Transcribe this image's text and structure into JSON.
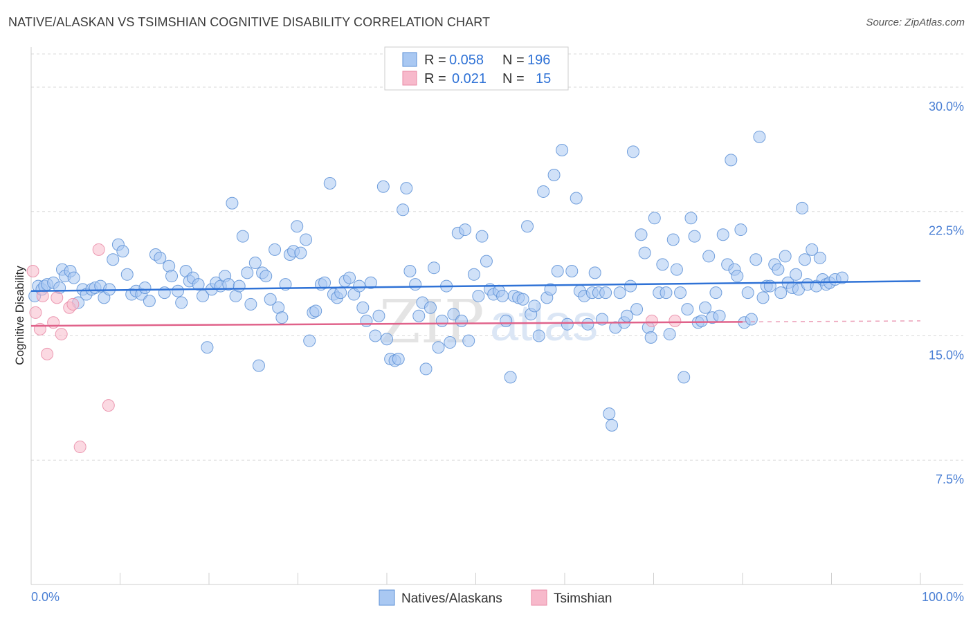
{
  "title": "NATIVE/ALASKAN VS TSIMSHIAN COGNITIVE DISABILITY CORRELATION CHART",
  "source": "Source: ZipAtlas.com",
  "watermark": {
    "zip": "ZIP",
    "atlas": "atlas"
  },
  "legend": {
    "rows": [
      {
        "r_label": "R =",
        "r_value": "0.058",
        "n_label": "N =",
        "n_value": "196",
        "color": "#a9c8f2"
      },
      {
        "r_label": "R =",
        "r_value": "0.021",
        "n_label": "N =",
        "n_value": "15",
        "color": "#f7b9cb"
      }
    ]
  },
  "bottom_legend": {
    "natives": "Natives/Alaskans",
    "tsimshian": "Tsimshian"
  },
  "colors": {
    "blue_fill": "#a9c8f2",
    "blue_stroke": "#5b8fd6",
    "blue_line": "#2f72d6",
    "pink_fill": "#f7b9cb",
    "pink_stroke": "#e98aa6",
    "pink_line": "#e0628a",
    "tick_text": "#4a7fd4",
    "grid": "#d8d8d8"
  },
  "chart_data": {
    "type": "scatter",
    "title": "NATIVE/ALASKAN VS TSIMSHIAN COGNITIVE DISABILITY CORRELATION CHART",
    "xlabel": "",
    "ylabel": "Cognitive Disability",
    "xlim": [
      0,
      100
    ],
    "ylim": [
      0,
      32
    ],
    "x_tick_labels": [
      "0.0%",
      "100.0%"
    ],
    "y_ticks": [
      7.5,
      15.0,
      22.5,
      30.0
    ],
    "y_tick_labels": [
      "7.5%",
      "15.0%",
      "22.5%",
      "30.0%"
    ],
    "grid": "horizontal dashed",
    "legend_position": "top-center",
    "series": [
      {
        "name": "Natives/Alaskans",
        "r": 0.058,
        "n": 196,
        "trend": {
          "x": [
            0,
            100
          ],
          "y": [
            17.7,
            18.3
          ]
        },
        "points": [
          [
            0.4,
            17.4
          ],
          [
            0.8,
            18.0
          ],
          [
            1.2,
            17.8
          ],
          [
            1.5,
            18.0
          ],
          [
            1.8,
            18.1
          ],
          [
            2.5,
            18.2
          ],
          [
            3.2,
            17.9
          ],
          [
            3.5,
            19.0
          ],
          [
            3.8,
            18.6
          ],
          [
            4.4,
            18.9
          ],
          [
            4.8,
            18.5
          ],
          [
            5.3,
            17.0
          ],
          [
            5.8,
            17.8
          ],
          [
            6.2,
            17.5
          ],
          [
            6.8,
            17.8
          ],
          [
            7.2,
            17.9
          ],
          [
            7.8,
            18.0
          ],
          [
            8.2,
            17.3
          ],
          [
            8.8,
            17.8
          ],
          [
            9.2,
            19.6
          ],
          [
            9.8,
            20.5
          ],
          [
            10.3,
            20.1
          ],
          [
            10.8,
            18.7
          ],
          [
            11.3,
            17.5
          ],
          [
            11.8,
            17.7
          ],
          [
            12.4,
            17.5
          ],
          [
            12.8,
            17.9
          ],
          [
            13.3,
            17.1
          ],
          [
            14.0,
            19.9
          ],
          [
            14.5,
            19.7
          ],
          [
            15.0,
            17.6
          ],
          [
            15.5,
            19.2
          ],
          [
            15.8,
            18.6
          ],
          [
            16.5,
            17.7
          ],
          [
            16.9,
            17.0
          ],
          [
            17.4,
            18.9
          ],
          [
            17.8,
            18.3
          ],
          [
            18.2,
            18.5
          ],
          [
            18.8,
            18.1
          ],
          [
            19.3,
            17.4
          ],
          [
            19.8,
            14.3
          ],
          [
            20.3,
            17.8
          ],
          [
            20.8,
            18.2
          ],
          [
            21.3,
            18.0
          ],
          [
            21.8,
            18.6
          ],
          [
            22.2,
            18.1
          ],
          [
            22.6,
            23.0
          ],
          [
            23.0,
            17.4
          ],
          [
            23.4,
            18.0
          ],
          [
            23.8,
            21.0
          ],
          [
            24.3,
            18.8
          ],
          [
            24.7,
            16.9
          ],
          [
            25.2,
            19.4
          ],
          [
            25.6,
            13.2
          ],
          [
            26.0,
            18.8
          ],
          [
            26.4,
            18.6
          ],
          [
            26.9,
            17.2
          ],
          [
            27.4,
            20.2
          ],
          [
            27.8,
            16.7
          ],
          [
            28.2,
            16.1
          ],
          [
            28.6,
            18.1
          ],
          [
            29.1,
            19.9
          ],
          [
            29.5,
            20.1
          ],
          [
            29.9,
            21.6
          ],
          [
            30.3,
            20.0
          ],
          [
            30.9,
            20.8
          ],
          [
            31.3,
            14.7
          ],
          [
            31.7,
            16.4
          ],
          [
            32.0,
            16.5
          ],
          [
            32.6,
            18.1
          ],
          [
            33.0,
            18.2
          ],
          [
            33.6,
            24.2
          ],
          [
            34.0,
            17.5
          ],
          [
            34.4,
            17.3
          ],
          [
            34.8,
            17.6
          ],
          [
            35.3,
            18.3
          ],
          [
            35.8,
            18.5
          ],
          [
            36.3,
            17.5
          ],
          [
            36.9,
            18.0
          ],
          [
            37.3,
            16.7
          ],
          [
            37.7,
            15.9
          ],
          [
            38.2,
            18.2
          ],
          [
            38.7,
            15.0
          ],
          [
            39.1,
            16.2
          ],
          [
            39.6,
            24.0
          ],
          [
            40.0,
            14.8
          ],
          [
            40.4,
            13.6
          ],
          [
            40.9,
            13.5
          ],
          [
            41.3,
            13.6
          ],
          [
            41.8,
            22.6
          ],
          [
            42.2,
            23.9
          ],
          [
            42.6,
            18.9
          ],
          [
            43.2,
            18.1
          ],
          [
            43.6,
            16.2
          ],
          [
            44.0,
            17.0
          ],
          [
            44.4,
            13.0
          ],
          [
            44.9,
            16.7
          ],
          [
            45.3,
            19.1
          ],
          [
            45.8,
            14.3
          ],
          [
            46.2,
            15.9
          ],
          [
            46.7,
            18.0
          ],
          [
            47.1,
            14.6
          ],
          [
            47.5,
            16.3
          ],
          [
            48.0,
            21.2
          ],
          [
            48.4,
            15.9
          ],
          [
            48.8,
            21.4
          ],
          [
            49.2,
            14.7
          ],
          [
            49.8,
            18.7
          ],
          [
            50.3,
            17.4
          ],
          [
            50.7,
            21.0
          ],
          [
            51.2,
            19.5
          ],
          [
            51.6,
            17.8
          ],
          [
            52.0,
            17.5
          ],
          [
            52.6,
            17.7
          ],
          [
            53.0,
            17.4
          ],
          [
            53.4,
            15.9
          ],
          [
            53.9,
            12.5
          ],
          [
            54.3,
            17.4
          ],
          [
            54.8,
            17.3
          ],
          [
            55.3,
            17.2
          ],
          [
            55.8,
            21.6
          ],
          [
            56.2,
            16.3
          ],
          [
            56.6,
            16.8
          ],
          [
            57.1,
            15.0
          ],
          [
            57.6,
            23.7
          ],
          [
            58.0,
            17.3
          ],
          [
            58.4,
            17.8
          ],
          [
            58.8,
            24.7
          ],
          [
            59.2,
            18.9
          ],
          [
            59.7,
            26.2
          ],
          [
            60.3,
            15.7
          ],
          [
            60.8,
            18.9
          ],
          [
            61.3,
            23.3
          ],
          [
            61.7,
            17.7
          ],
          [
            62.2,
            17.4
          ],
          [
            62.6,
            15.7
          ],
          [
            63.1,
            17.6
          ],
          [
            63.4,
            18.8
          ],
          [
            63.8,
            17.6
          ],
          [
            64.2,
            16.0
          ],
          [
            64.6,
            17.6
          ],
          [
            65.0,
            10.3
          ],
          [
            65.3,
            9.6
          ],
          [
            65.7,
            15.5
          ],
          [
            66.2,
            17.6
          ],
          [
            66.7,
            15.8
          ],
          [
            67.0,
            16.2
          ],
          [
            67.4,
            18.0
          ],
          [
            67.7,
            26.1
          ],
          [
            68.1,
            16.6
          ],
          [
            68.6,
            21.1
          ],
          [
            69.0,
            20.0
          ],
          [
            69.4,
            15.5
          ],
          [
            69.7,
            14.9
          ],
          [
            70.1,
            22.1
          ],
          [
            70.6,
            17.6
          ],
          [
            71.0,
            19.3
          ],
          [
            71.4,
            17.6
          ],
          [
            71.8,
            15.1
          ],
          [
            72.2,
            20.8
          ],
          [
            72.6,
            19.0
          ],
          [
            73.0,
            17.6
          ],
          [
            73.4,
            12.5
          ],
          [
            73.8,
            16.6
          ],
          [
            74.2,
            22.1
          ],
          [
            74.6,
            21.0
          ],
          [
            75.0,
            15.8
          ],
          [
            75.4,
            15.9
          ],
          [
            75.8,
            16.7
          ],
          [
            76.2,
            19.8
          ],
          [
            76.6,
            16.1
          ],
          [
            77.0,
            17.6
          ],
          [
            77.4,
            16.2
          ],
          [
            77.8,
            21.1
          ],
          [
            78.3,
            19.3
          ],
          [
            78.7,
            25.6
          ],
          [
            79.1,
            19.0
          ],
          [
            79.4,
            18.6
          ],
          [
            79.8,
            21.4
          ],
          [
            80.2,
            15.8
          ],
          [
            80.6,
            17.6
          ],
          [
            81.0,
            16.0
          ],
          [
            81.5,
            19.6
          ],
          [
            81.9,
            27.0
          ],
          [
            82.3,
            17.3
          ],
          [
            82.7,
            18.0
          ],
          [
            83.1,
            18.0
          ],
          [
            83.6,
            19.3
          ],
          [
            84.0,
            19.0
          ],
          [
            84.3,
            17.6
          ],
          [
            84.8,
            19.8
          ],
          [
            85.1,
            18.2
          ],
          [
            85.6,
            17.9
          ],
          [
            86.0,
            18.7
          ],
          [
            86.3,
            17.8
          ],
          [
            86.7,
            22.7
          ],
          [
            87.0,
            19.6
          ],
          [
            87.3,
            18.1
          ],
          [
            87.8,
            20.2
          ],
          [
            88.3,
            18.0
          ],
          [
            88.7,
            19.7
          ],
          [
            89.0,
            18.4
          ],
          [
            89.4,
            18.1
          ],
          [
            89.8,
            18.2
          ],
          [
            90.4,
            18.4
          ],
          [
            91.2,
            18.5
          ]
        ]
      },
      {
        "name": "Tsimshian",
        "r": 0.021,
        "n": 15,
        "trend": {
          "x": [
            0,
            100
          ],
          "y": [
            15.6,
            15.9
          ]
        },
        "points": [
          [
            0.2,
            18.9
          ],
          [
            0.5,
            16.4
          ],
          [
            1.0,
            15.4
          ],
          [
            1.3,
            17.4
          ],
          [
            1.8,
            13.9
          ],
          [
            2.5,
            15.8
          ],
          [
            2.9,
            17.3
          ],
          [
            3.4,
            15.1
          ],
          [
            4.3,
            16.7
          ],
          [
            4.7,
            16.9
          ],
          [
            5.5,
            8.3
          ],
          [
            7.6,
            20.2
          ],
          [
            8.7,
            10.8
          ],
          [
            69.8,
            15.9
          ],
          [
            72.4,
            15.9
          ]
        ]
      }
    ]
  }
}
